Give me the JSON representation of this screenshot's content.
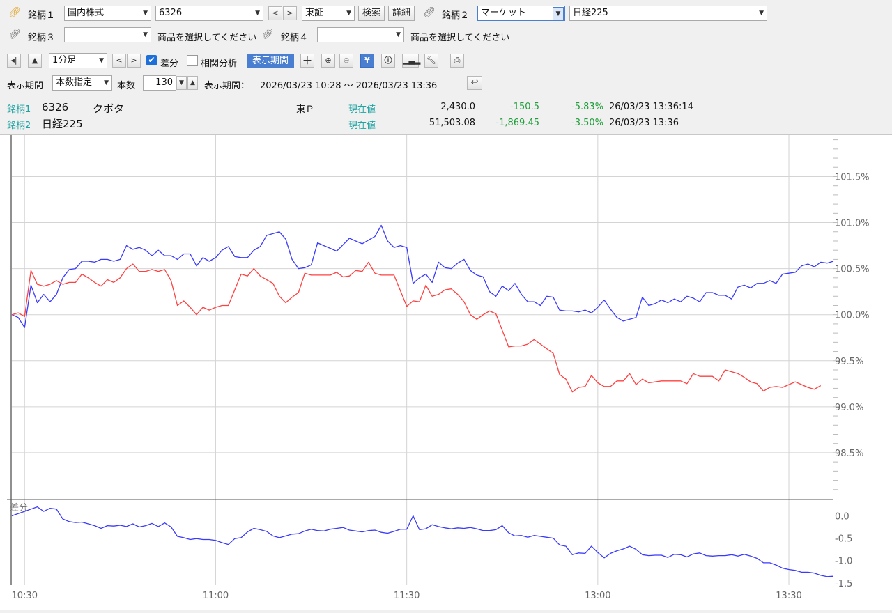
{
  "toolbar1": {
    "sym1_label": "銘柄１",
    "market_select": "国内株式",
    "code_input": "6326",
    "exchange_select": "東証",
    "search_button": "検索",
    "detail_button": "詳細",
    "sym2_label": "銘柄２",
    "sym2_category": "マーケット",
    "sym2_value": "日経225"
  },
  "toolbar2": {
    "sym3_label": "銘柄３",
    "sym3_hint": "商品を選択してください",
    "sym4_label": "銘柄４",
    "sym4_hint": "商品を選択してください"
  },
  "toolbar3": {
    "interval_select": "1分足",
    "diff_label": "差分",
    "diff_checked": true,
    "correlation_label": "相関分析",
    "period_button": "表示期間"
  },
  "toolbar4": {
    "period_label": "表示期間",
    "period_mode": "本数指定",
    "count_label": "本数",
    "count_value": "130",
    "range_label": "表示期間：",
    "range_value": "2026/03/23 10:28 ～ 2026/03/23 13:36"
  },
  "quotes": [
    {
      "tag": "銘柄1",
      "code": "6326",
      "name": "クボタ",
      "exch": "東Ｐ",
      "type": "現在値",
      "price": "2,430.0",
      "change": "-150.5",
      "pct": "-5.83%",
      "time": "26/03/23 13:36:14"
    },
    {
      "tag": "銘柄2",
      "code": "",
      "name": "日経225",
      "exch": "",
      "type": "現在値",
      "price": "51,503.08",
      "change": "-1,869.45",
      "pct": "-3.50%",
      "time": "26/03/23 13:36"
    }
  ],
  "chart_data": {
    "type": "line",
    "main": {
      "y_ticks": [
        "101.5%",
        "101.0%",
        "100.5%",
        "100.0%",
        "99.5%",
        "99.0%",
        "98.5%"
      ],
      "y_tick_values": [
        101.5,
        101.0,
        100.5,
        100.0,
        99.5,
        99.0,
        98.5
      ],
      "ylim": [
        98.0,
        101.95
      ],
      "series": [
        {
          "color": "#3a3aff",
          "values": [
            100.0,
            99.97,
            99.86,
            100.32,
            100.13,
            100.22,
            100.14,
            100.22,
            100.4,
            100.49,
            100.5,
            100.58,
            100.58,
            100.57,
            100.6,
            100.6,
            100.58,
            100.6,
            100.75,
            100.71,
            100.73,
            100.7,
            100.64,
            100.7,
            100.64,
            100.64,
            100.6,
            100.66,
            100.66,
            100.53,
            100.62,
            100.58,
            100.62,
            100.7,
            100.74,
            100.63,
            100.62,
            100.62,
            100.7,
            100.74,
            100.86,
            100.88,
            100.9,
            100.82,
            100.6,
            100.5,
            100.51,
            100.54,
            100.78,
            100.75,
            100.72,
            100.69,
            100.76,
            100.83,
            100.8,
            100.77,
            100.81,
            100.85,
            100.97,
            100.8,
            100.73,
            100.75,
            100.73,
            100.34,
            100.4,
            100.44,
            100.35,
            100.57,
            100.51,
            100.5,
            100.56,
            100.6,
            100.48,
            100.43,
            100.41,
            100.25,
            100.2,
            100.31,
            100.26,
            100.34,
            100.22,
            100.14,
            100.14,
            100.1,
            100.2,
            100.19,
            100.05,
            100.04,
            100.04,
            100.03,
            100.05,
            100.02,
            100.08,
            100.16,
            100.06,
            99.97,
            99.93,
            99.95,
            99.97,
            100.19,
            100.1,
            100.12,
            100.16,
            100.13,
            100.17,
            100.14,
            100.2,
            100.18,
            100.14,
            100.24,
            100.24,
            100.21,
            100.21,
            100.17,
            100.3,
            100.32,
            100.29,
            100.34,
            100.34,
            100.37,
            100.34,
            100.44,
            100.45,
            100.46,
            100.53,
            100.55,
            100.52,
            100.57,
            100.56,
            100.58
          ]
        },
        {
          "color": "#ff4040",
          "values": [
            100.0,
            100.02,
            99.98,
            100.48,
            100.33,
            100.31,
            100.33,
            100.37,
            100.33,
            100.35,
            100.35,
            100.44,
            100.4,
            100.35,
            100.31,
            100.38,
            100.35,
            100.4,
            100.5,
            100.55,
            100.47,
            100.47,
            100.49,
            100.47,
            100.49,
            100.37,
            100.1,
            100.15,
            100.08,
            100.0,
            100.08,
            100.05,
            100.08,
            100.1,
            100.1,
            100.27,
            100.44,
            100.42,
            100.5,
            100.42,
            100.38,
            100.34,
            100.2,
            100.13,
            100.19,
            100.24,
            100.45,
            100.43,
            100.43,
            100.43,
            100.43,
            100.46,
            100.41,
            100.42,
            100.48,
            100.47,
            100.57,
            100.45,
            100.43,
            100.43,
            100.43,
            100.26,
            100.09,
            100.15,
            100.14,
            100.32,
            100.2,
            100.22,
            100.27,
            100.28,
            100.22,
            100.14,
            100.0,
            99.95,
            100.0,
            100.04,
            100.01,
            99.83,
            99.65,
            99.66,
            99.66,
            99.68,
            99.73,
            99.68,
            99.63,
            99.58,
            99.35,
            99.3,
            99.16,
            99.21,
            99.22,
            99.34,
            99.26,
            99.22,
            99.22,
            99.28,
            99.28,
            99.36,
            99.24,
            99.3,
            99.26,
            99.27,
            99.28,
            99.28,
            99.28,
            99.28,
            99.25,
            99.36,
            99.33,
            99.33,
            99.33,
            99.28,
            99.4,
            99.38,
            99.36,
            99.32,
            99.27,
            99.25,
            99.17,
            99.21,
            99.22,
            99.21,
            99.24,
            99.27,
            99.24,
            99.21,
            99.19,
            99.23
          ]
        }
      ]
    },
    "diff": {
      "label": "差分",
      "y_ticks": [
        "0.0",
        "-0.5",
        "-1.0",
        "-1.5"
      ],
      "y_tick_values": [
        0.0,
        -0.5,
        -1.0,
        -1.5
      ],
      "ylim": [
        -1.55,
        0.35
      ],
      "series": [
        {
          "color": "#3a3aff",
          "values": [
            0.0,
            0.05,
            0.1,
            0.15,
            0.2,
            0.1,
            0.17,
            0.15,
            -0.07,
            -0.13,
            -0.15,
            -0.14,
            -0.18,
            -0.22,
            -0.28,
            -0.22,
            -0.23,
            -0.21,
            -0.24,
            -0.18,
            -0.25,
            -0.22,
            -0.17,
            -0.24,
            -0.16,
            -0.25,
            -0.46,
            -0.49,
            -0.53,
            -0.51,
            -0.53,
            -0.53,
            -0.55,
            -0.6,
            -0.64,
            -0.51,
            -0.49,
            -0.36,
            -0.28,
            -0.31,
            -0.35,
            -0.45,
            -0.49,
            -0.45,
            -0.41,
            -0.4,
            -0.34,
            -0.3,
            -0.33,
            -0.34,
            -0.3,
            -0.28,
            -0.26,
            -0.32,
            -0.34,
            -0.36,
            -0.33,
            -0.32,
            -0.37,
            -0.39,
            -0.35,
            -0.3,
            -0.3,
            0.0,
            -0.31,
            -0.29,
            -0.2,
            -0.24,
            -0.27,
            -0.29,
            -0.27,
            -0.28,
            -0.26,
            -0.29,
            -0.33,
            -0.33,
            -0.31,
            -0.22,
            -0.38,
            -0.45,
            -0.44,
            -0.48,
            -0.44,
            -0.46,
            -0.48,
            -0.5,
            -0.65,
            -0.68,
            -0.87,
            -0.83,
            -0.84,
            -0.68,
            -0.82,
            -0.94,
            -0.84,
            -0.78,
            -0.74,
            -0.68,
            -0.75,
            -0.87,
            -0.89,
            -0.88,
            -0.88,
            -0.93,
            -0.86,
            -0.87,
            -0.92,
            -0.85,
            -0.83,
            -0.89,
            -0.9,
            -0.89,
            -0.89,
            -0.87,
            -0.9,
            -0.86,
            -0.9,
            -0.95,
            -1.05,
            -1.05,
            -1.1,
            -1.17,
            -1.2,
            -1.22,
            -1.26,
            -1.26,
            -1.28,
            -1.33,
            -1.36,
            -1.35
          ]
        }
      ]
    },
    "x_ticks": [
      {
        "label": "10:30",
        "index": 2
      },
      {
        "label": "11:00",
        "index": 32
      },
      {
        "label": "11:30",
        "index": 62
      },
      {
        "label": "13:00",
        "index": 92
      },
      {
        "label": "13:30",
        "index": 122
      }
    ]
  }
}
